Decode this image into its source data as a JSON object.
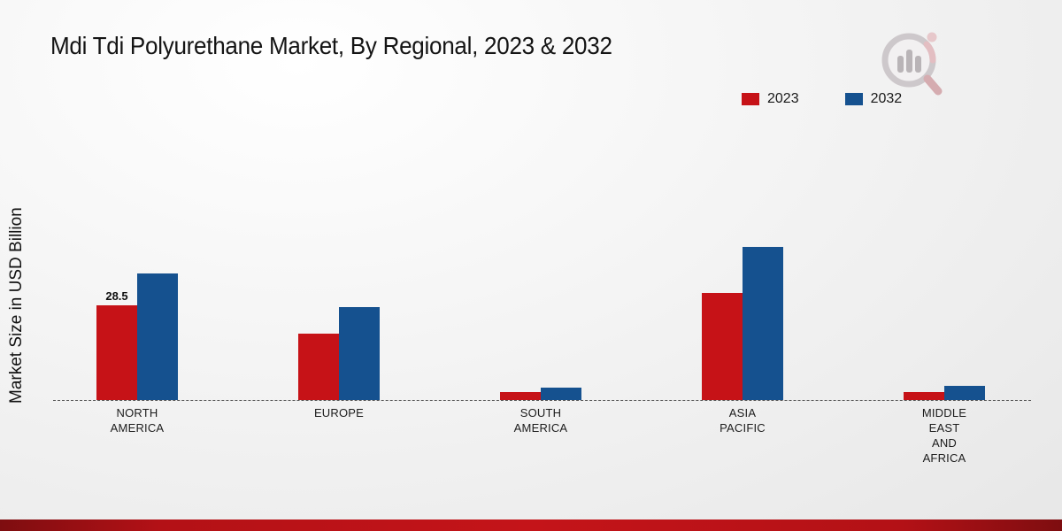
{
  "chart_data": {
    "type": "bar",
    "title": "Mdi Tdi Polyurethane Market, By Regional, 2023 & 2032",
    "ylabel": "Market Size in USD Billion",
    "xlabel": "",
    "categories": [
      "NORTH AMERICA",
      "EUROPE",
      "SOUTH AMERICA",
      "ASIA PACIFIC",
      "MIDDLE EAST AND AFRICA"
    ],
    "series": [
      {
        "name": "2023",
        "color": "#c61217",
        "values": [
          28.5,
          20.0,
          2.5,
          32.3,
          2.5
        ]
      },
      {
        "name": "2032",
        "color": "#15518f",
        "values": [
          38.0,
          28.1,
          3.8,
          46.2,
          4.2
        ]
      }
    ],
    "ylim": [
      0,
      50
    ],
    "grid": false,
    "legend_position": "top-right",
    "baseline_style": "dashed",
    "data_labels": [
      {
        "series": "2023",
        "category": "NORTH AMERICA",
        "text": "28.5"
      }
    ]
  },
  "legend": {
    "items": [
      {
        "label": "2023",
        "color": "#c61217"
      },
      {
        "label": "2032",
        "color": "#15518f"
      }
    ]
  },
  "colors": {
    "accent_strip": "#c41419",
    "baseline": "#555555"
  }
}
